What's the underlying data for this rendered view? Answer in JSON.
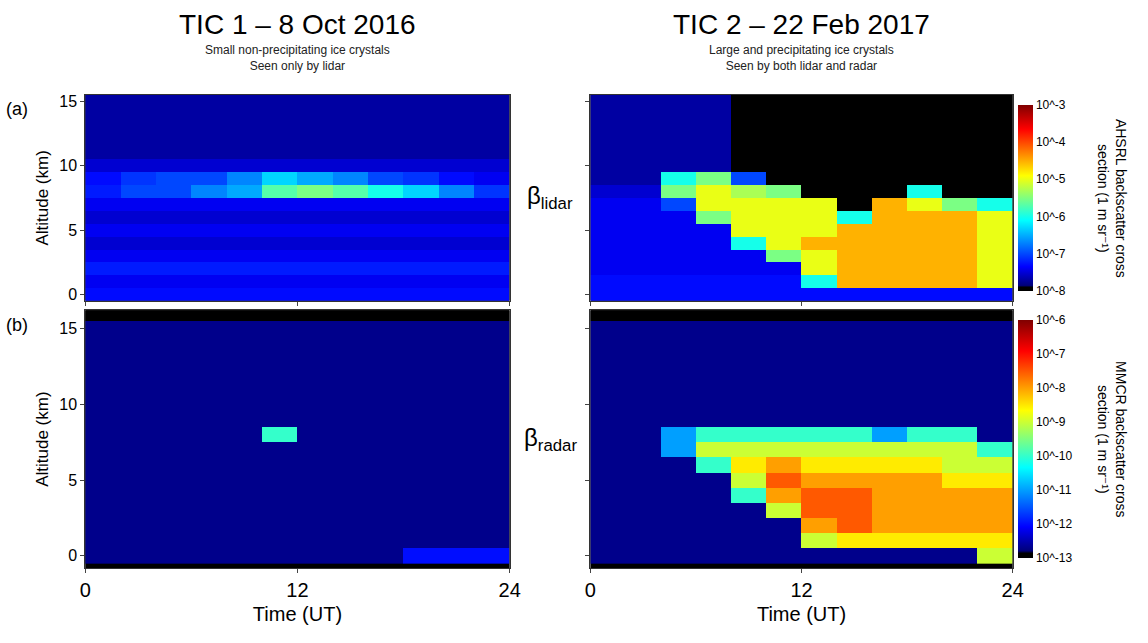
{
  "columns": [
    {
      "title": "TIC 1 – 8 Oct 2016",
      "subtitle": [
        "Small non-precipitating ice crystals",
        "Seen only by lidar"
      ]
    },
    {
      "title": "TIC 2 – 22 Feb 2017",
      "subtitle": [
        "Large and precipitating ice crystals",
        "Seen by both lidar and radar"
      ]
    }
  ],
  "rows": [
    {
      "panel_label": "(a)",
      "symbol": "β",
      "subscript": "lidar",
      "colorbar": {
        "title": "AHSRL backscatter cross section (1 m sr⁻¹)",
        "log": true,
        "range": [
          1e-08,
          0.001
        ],
        "ticks": [
          {
            "value": 0.001,
            "label": "10^-3"
          },
          {
            "value": 0.0001,
            "label": "10^-4"
          },
          {
            "value": 1e-05,
            "label": "10^-5"
          },
          {
            "value": 1e-06,
            "label": "10^-6"
          },
          {
            "value": 1e-07,
            "label": "10^-7"
          },
          {
            "value": 1e-08,
            "label": "10^-8"
          }
        ]
      }
    },
    {
      "panel_label": "(b)",
      "symbol": "β",
      "subscript": "radar",
      "colorbar": {
        "title": "MMCR backscatter cross section (1 m sr⁻¹)",
        "log": true,
        "range": [
          1e-13,
          1e-06
        ],
        "ticks": [
          {
            "value": 1e-06,
            "label": "10^-6"
          },
          {
            "value": 1e-07,
            "label": "10^-7"
          },
          {
            "value": 1e-08,
            "label": "10^-8"
          },
          {
            "value": 1e-09,
            "label": "10^-9"
          },
          {
            "value": 1e-10,
            "label": "10^-10"
          },
          {
            "value": 1e-11,
            "label": "10^-11"
          },
          {
            "value": 1e-12,
            "label": "10^-12"
          },
          {
            "value": 1e-13,
            "label": "10^-13"
          }
        ]
      }
    }
  ],
  "chart_data": [
    {
      "type": "heatmap",
      "ylabel": "Altitude (km)",
      "tick_labels": "y",
      "x": [
        1,
        3,
        5,
        7,
        9,
        11,
        13,
        15,
        17,
        19,
        21,
        23
      ],
      "y": [
        0,
        1,
        2,
        3,
        4,
        5,
        6,
        7,
        8,
        9,
        10,
        11,
        12,
        13,
        14,
        15
      ],
      "xlim": [
        0,
        24
      ],
      "ylim": [
        -0.5,
        15.5
      ],
      "xticks": [
        0,
        12,
        24
      ],
      "yticks": [
        0,
        5,
        10,
        15
      ],
      "z": [
        [
          5e-08,
          5e-08,
          5e-08,
          5e-08,
          5e-08,
          5e-08,
          5e-08,
          5e-08,
          5e-08,
          5e-08,
          5e-08,
          5e-08
        ],
        [
          4e-08,
          4e-08,
          4e-08,
          4e-08,
          4e-08,
          4e-08,
          4e-08,
          4e-08,
          4e-08,
          4e-08,
          4e-08,
          4e-08
        ],
        [
          6e-08,
          6e-08,
          6e-08,
          6e-08,
          6e-08,
          6e-08,
          6e-08,
          6e-08,
          6e-08,
          6e-08,
          6e-08,
          6e-08
        ],
        [
          4e-08,
          4e-08,
          4e-08,
          4e-08,
          4e-08,
          4e-08,
          4e-08,
          4e-08,
          4e-08,
          4e-08,
          4e-08,
          4e-08
        ],
        [
          3e-08,
          3e-08,
          3e-08,
          3e-08,
          3e-08,
          3e-08,
          3e-08,
          3e-08,
          3e-08,
          3e-08,
          3e-08,
          3e-08
        ],
        [
          4e-08,
          4e-08,
          4e-08,
          4e-08,
          4e-08,
          4e-08,
          4e-08,
          4e-08,
          4e-08,
          4e-08,
          4e-08,
          4e-08
        ],
        [
          3e-08,
          3e-08,
          3e-08,
          3e-08,
          3e-08,
          3e-08,
          3e-08,
          3e-08,
          3e-08,
          3e-08,
          3e-08,
          3e-08
        ],
        [
          4e-08,
          4e-08,
          4e-08,
          4e-08,
          4e-08,
          4e-08,
          4e-08,
          4e-08,
          4e-08,
          4e-08,
          4e-08,
          4e-08
        ],
        [
          6e-08,
          1e-07,
          1e-07,
          2e-07,
          3e-07,
          2e-06,
          3e-06,
          2e-06,
          1e-06,
          5e-07,
          2e-07,
          8e-08
        ],
        [
          5e-08,
          8e-08,
          1e-07,
          1e-07,
          2e-07,
          5e-07,
          3e-07,
          2e-07,
          1e-07,
          8e-08,
          5e-08,
          4e-08
        ],
        [
          3e-08,
          3e-08,
          3e-08,
          3e-08,
          3e-08,
          3e-08,
          3e-08,
          3e-08,
          3e-08,
          3e-08,
          3e-08,
          3e-08
        ],
        [
          2e-08,
          2e-08,
          2e-08,
          2e-08,
          2e-08,
          2e-08,
          2e-08,
          2e-08,
          2e-08,
          2e-08,
          2e-08,
          2e-08
        ],
        [
          2e-08,
          2e-08,
          2e-08,
          2e-08,
          2e-08,
          2e-08,
          2e-08,
          2e-08,
          2e-08,
          2e-08,
          2e-08,
          2e-08
        ],
        [
          2e-08,
          2e-08,
          2e-08,
          2e-08,
          2e-08,
          2e-08,
          2e-08,
          2e-08,
          2e-08,
          2e-08,
          2e-08,
          2e-08
        ],
        [
          2e-08,
          2e-08,
          2e-08,
          2e-08,
          2e-08,
          2e-08,
          2e-08,
          2e-08,
          2e-08,
          2e-08,
          2e-08,
          2e-08
        ],
        [
          2e-08,
          2e-08,
          2e-08,
          2e-08,
          2e-08,
          2e-08,
          2e-08,
          2e-08,
          2e-08,
          2e-08,
          2e-08,
          2e-08
        ]
      ]
    },
    {
      "type": "heatmap",
      "tick_labels": false,
      "x": [
        1,
        3,
        5,
        7,
        9,
        11,
        13,
        15,
        17,
        19,
        21,
        23
      ],
      "y": [
        0,
        1,
        2,
        3,
        4,
        5,
        6,
        7,
        8,
        9,
        10,
        11,
        12,
        13,
        14,
        15
      ],
      "xlim": [
        0,
        24
      ],
      "ylim": [
        -0.5,
        15.5
      ],
      "xticks": [
        0,
        12,
        24
      ],
      "yticks": [
        0,
        5,
        10,
        15
      ],
      "z": [
        [
          5e-08,
          5e-08,
          5e-08,
          5e-08,
          5e-08,
          5e-08,
          5e-08,
          5e-08,
          5e-08,
          5e-08,
          5e-08,
          5e-08
        ],
        [
          5e-08,
          5e-08,
          5e-08,
          5e-08,
          5e-08,
          5e-08,
          1e-06,
          3e-05,
          3e-05,
          3e-05,
          3e-05,
          1e-05
        ],
        [
          4e-08,
          4e-08,
          4e-08,
          4e-08,
          4e-08,
          4e-08,
          1e-05,
          3e-05,
          3e-05,
          3e-05,
          3e-05,
          1e-05
        ],
        [
          4e-08,
          4e-08,
          4e-08,
          4e-08,
          4e-08,
          3e-06,
          1e-05,
          3e-05,
          3e-05,
          3e-05,
          3e-05,
          1e-05
        ],
        [
          4e-08,
          4e-08,
          4e-08,
          4e-08,
          1e-06,
          1e-05,
          3e-05,
          3e-05,
          3e-05,
          3e-05,
          3e-05,
          1e-05
        ],
        [
          4e-08,
          4e-08,
          4e-08,
          4e-08,
          1e-05,
          1e-05,
          1e-05,
          3e-05,
          3e-05,
          3e-05,
          3e-05,
          1e-05
        ],
        [
          4e-08,
          4e-08,
          4e-08,
          3e-06,
          1e-05,
          1e-05,
          1e-05,
          1e-06,
          3e-05,
          3e-05,
          3e-05,
          1e-05
        ],
        [
          4e-08,
          4e-08,
          1e-07,
          1e-05,
          1e-05,
          1e-05,
          1e-05,
          1e-09,
          3e-05,
          1e-05,
          3e-06,
          1e-06
        ],
        [
          3e-08,
          3e-08,
          3e-06,
          1e-05,
          5e-06,
          3e-06,
          1e-09,
          1e-09,
          1e-09,
          1e-06,
          1e-09,
          1e-09
        ],
        [
          2e-08,
          2e-08,
          1e-06,
          3e-06,
          1e-07,
          1e-09,
          1e-09,
          1e-09,
          1e-09,
          1e-09,
          1e-09,
          1e-09
        ],
        [
          2e-08,
          2e-08,
          2e-08,
          2e-08,
          1e-08,
          1e-09,
          1e-09,
          1e-09,
          1e-09,
          1e-09,
          1e-09,
          1e-09
        ],
        [
          2e-08,
          2e-08,
          2e-08,
          2e-08,
          1e-08,
          1e-09,
          1e-09,
          1e-09,
          1e-09,
          1e-09,
          1e-09,
          1e-09
        ],
        [
          2e-08,
          2e-08,
          2e-08,
          2e-08,
          1e-08,
          1e-09,
          1e-09,
          1e-09,
          1e-09,
          1e-09,
          1e-09,
          1e-09
        ],
        [
          2e-08,
          2e-08,
          2e-08,
          2e-08,
          1e-08,
          1e-09,
          1e-09,
          1e-09,
          1e-09,
          1e-09,
          1e-09,
          1e-09
        ],
        [
          2e-08,
          2e-08,
          2e-08,
          2e-08,
          1e-08,
          1e-09,
          1e-09,
          1e-09,
          1e-09,
          1e-09,
          1e-09,
          1e-09
        ],
        [
          2e-08,
          2e-08,
          2e-08,
          2e-08,
          1e-08,
          1e-09,
          1e-09,
          1e-09,
          1e-09,
          1e-09,
          1e-09,
          1e-09
        ]
      ]
    },
    {
      "type": "heatmap",
      "xlabel": "Time (UT)",
      "ylabel": "Altitude (km)",
      "tick_labels": true,
      "x": [
        1,
        3,
        5,
        7,
        9,
        11,
        13,
        15,
        17,
        19,
        21,
        23
      ],
      "y": [
        0,
        1,
        2,
        3,
        4,
        5,
        6,
        7,
        8,
        9,
        10,
        11,
        12,
        13,
        14,
        15,
        16
      ],
      "xlim": [
        0,
        24
      ],
      "ylim": [
        -0.8,
        16.2
      ],
      "xticks": [
        0,
        12,
        24
      ],
      "yticks": [
        0,
        5,
        10,
        15
      ],
      "z": [
        [
          2e-13,
          2e-13,
          2e-13,
          2e-13,
          2e-13,
          2e-13,
          2e-13,
          2e-13,
          2e-13,
          1e-12,
          1e-12,
          1e-12
        ],
        [
          2e-13,
          2e-13,
          2e-13,
          2e-13,
          2e-13,
          2e-13,
          2e-13,
          2e-13,
          2e-13,
          2e-13,
          2e-13,
          2e-13
        ],
        [
          2e-13,
          2e-13,
          2e-13,
          2e-13,
          2e-13,
          2e-13,
          2e-13,
          2e-13,
          2e-13,
          2e-13,
          2e-13,
          2e-13
        ],
        [
          2e-13,
          2e-13,
          2e-13,
          2e-13,
          2e-13,
          2e-13,
          2e-13,
          2e-13,
          2e-13,
          2e-13,
          2e-13,
          2e-13
        ],
        [
          2e-13,
          2e-13,
          2e-13,
          2e-13,
          2e-13,
          2e-13,
          2e-13,
          2e-13,
          2e-13,
          2e-13,
          2e-13,
          2e-13
        ],
        [
          2e-13,
          2e-13,
          2e-13,
          2e-13,
          2e-13,
          2e-13,
          2e-13,
          2e-13,
          2e-13,
          2e-13,
          2e-13,
          2e-13
        ],
        [
          2e-13,
          2e-13,
          2e-13,
          2e-13,
          2e-13,
          2e-13,
          2e-13,
          2e-13,
          2e-13,
          2e-13,
          2e-13,
          2e-13
        ],
        [
          2e-13,
          2e-13,
          2e-13,
          2e-13,
          2e-13,
          2e-13,
          2e-13,
          2e-13,
          2e-13,
          2e-13,
          2e-13,
          2e-13
        ],
        [
          2e-13,
          2e-13,
          2e-13,
          2e-13,
          2e-13,
          1e-10,
          2e-13,
          2e-13,
          2e-13,
          2e-13,
          2e-13,
          2e-13
        ],
        [
          2e-13,
          2e-13,
          2e-13,
          2e-13,
          2e-13,
          2e-13,
          2e-13,
          2e-13,
          2e-13,
          2e-13,
          2e-13,
          2e-13
        ],
        [
          2e-13,
          2e-13,
          2e-13,
          2e-13,
          2e-13,
          2e-13,
          2e-13,
          2e-13,
          2e-13,
          2e-13,
          2e-13,
          2e-13
        ],
        [
          2e-13,
          2e-13,
          2e-13,
          2e-13,
          2e-13,
          2e-13,
          2e-13,
          2e-13,
          2e-13,
          2e-13,
          2e-13,
          2e-13
        ],
        [
          2e-13,
          2e-13,
          2e-13,
          2e-13,
          2e-13,
          2e-13,
          2e-13,
          2e-13,
          2e-13,
          2e-13,
          2e-13,
          2e-13
        ],
        [
          2e-13,
          2e-13,
          2e-13,
          2e-13,
          2e-13,
          2e-13,
          2e-13,
          2e-13,
          2e-13,
          2e-13,
          2e-13,
          2e-13
        ],
        [
          2e-13,
          2e-13,
          2e-13,
          2e-13,
          2e-13,
          2e-13,
          2e-13,
          2e-13,
          2e-13,
          2e-13,
          2e-13,
          2e-13
        ],
        [
          2e-13,
          2e-13,
          2e-13,
          2e-13,
          2e-13,
          2e-13,
          2e-13,
          2e-13,
          2e-13,
          2e-13,
          2e-13,
          2e-13
        ],
        [
          1e-13,
          1e-13,
          1e-13,
          1e-13,
          1e-13,
          1e-13,
          1e-13,
          1e-13,
          1e-13,
          1e-13,
          1e-13,
          1e-13
        ]
      ]
    },
    {
      "type": "heatmap",
      "xlabel": "Time (UT)",
      "tick_labels": "x",
      "x": [
        1,
        3,
        5,
        7,
        9,
        11,
        13,
        15,
        17,
        19,
        21,
        23
      ],
      "y": [
        0,
        1,
        2,
        3,
        4,
        5,
        6,
        7,
        8,
        9,
        10,
        11,
        12,
        13,
        14,
        15,
        16
      ],
      "xlim": [
        0,
        24
      ],
      "ylim": [
        -0.8,
        16.2
      ],
      "xticks": [
        0,
        12,
        24
      ],
      "yticks": [
        0,
        5,
        10,
        15
      ],
      "z": [
        [
          2e-13,
          2e-13,
          2e-13,
          2e-13,
          2e-13,
          2e-13,
          2e-13,
          2e-13,
          2e-13,
          2e-13,
          2e-13,
          1e-09
        ],
        [
          2e-13,
          2e-13,
          2e-13,
          2e-13,
          2e-13,
          2e-13,
          1e-09,
          3e-09,
          3e-09,
          3e-09,
          3e-09,
          3e-09
        ],
        [
          2e-13,
          2e-13,
          2e-13,
          2e-13,
          2e-13,
          2e-13,
          1e-08,
          3e-08,
          1e-08,
          1e-08,
          1e-08,
          1e-08
        ],
        [
          2e-13,
          2e-13,
          2e-13,
          2e-13,
          2e-13,
          1e-09,
          3e-08,
          3e-08,
          1e-08,
          1e-08,
          1e-08,
          1e-08
        ],
        [
          2e-13,
          2e-13,
          2e-13,
          2e-13,
          1e-10,
          1e-08,
          3e-08,
          3e-08,
          1e-08,
          1e-08,
          1e-08,
          1e-08
        ],
        [
          2e-13,
          2e-13,
          2e-13,
          2e-13,
          1e-09,
          3e-08,
          1e-08,
          1e-08,
          1e-08,
          1e-08,
          3e-09,
          3e-09
        ],
        [
          2e-13,
          2e-13,
          2e-13,
          1e-10,
          3e-09,
          1e-08,
          3e-09,
          3e-09,
          3e-09,
          3e-09,
          1e-09,
          1e-09
        ],
        [
          2e-13,
          2e-13,
          1e-11,
          1e-09,
          1e-09,
          1e-09,
          1e-09,
          1e-09,
          1e-09,
          1e-09,
          1e-09,
          1e-10
        ],
        [
          2e-13,
          2e-13,
          1e-11,
          1e-10,
          1e-10,
          1e-10,
          1e-10,
          1e-10,
          1e-11,
          1e-10,
          1e-10,
          2e-13
        ],
        [
          2e-13,
          2e-13,
          2e-13,
          2e-13,
          2e-13,
          2e-13,
          2e-13,
          2e-13,
          2e-13,
          2e-13,
          2e-13,
          2e-13
        ],
        [
          2e-13,
          2e-13,
          2e-13,
          2e-13,
          2e-13,
          2e-13,
          2e-13,
          2e-13,
          2e-13,
          2e-13,
          2e-13,
          2e-13
        ],
        [
          2e-13,
          2e-13,
          2e-13,
          2e-13,
          2e-13,
          2e-13,
          2e-13,
          2e-13,
          2e-13,
          2e-13,
          2e-13,
          2e-13
        ],
        [
          2e-13,
          2e-13,
          2e-13,
          2e-13,
          2e-13,
          2e-13,
          2e-13,
          2e-13,
          2e-13,
          2e-13,
          2e-13,
          2e-13
        ],
        [
          2e-13,
          2e-13,
          2e-13,
          2e-13,
          2e-13,
          2e-13,
          2e-13,
          2e-13,
          2e-13,
          2e-13,
          2e-13,
          2e-13
        ],
        [
          2e-13,
          2e-13,
          2e-13,
          2e-13,
          2e-13,
          2e-13,
          2e-13,
          2e-13,
          2e-13,
          2e-13,
          2e-13,
          2e-13
        ],
        [
          2e-13,
          2e-13,
          2e-13,
          2e-13,
          2e-13,
          2e-13,
          2e-13,
          2e-13,
          2e-13,
          2e-13,
          2e-13,
          2e-13
        ],
        [
          1e-13,
          1e-13,
          1e-13,
          1e-13,
          1e-13,
          1e-13,
          1e-13,
          1e-13,
          1e-13,
          1e-13,
          1e-13,
          1e-13
        ]
      ]
    }
  ]
}
